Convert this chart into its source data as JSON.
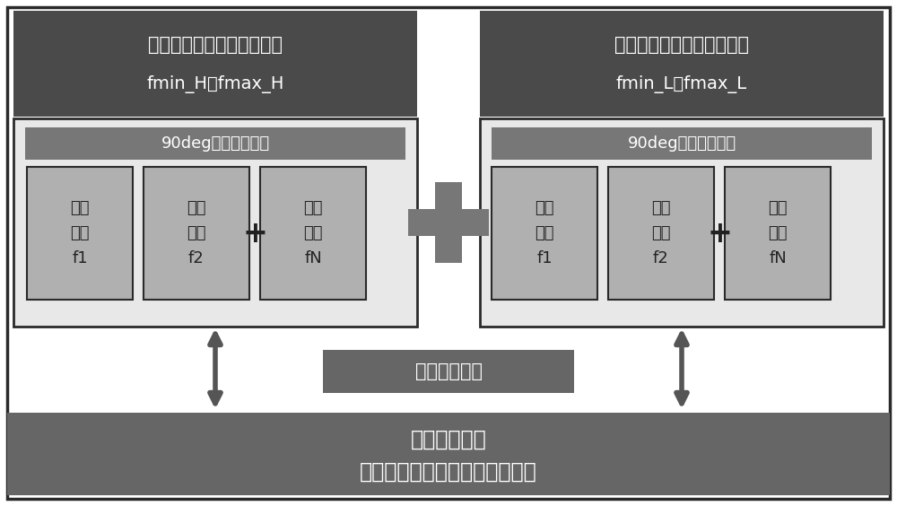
{
  "bg_color": "#ffffff",
  "outer_border_color": "#2a2a2a",
  "dark_header_color": "#4a4a4a",
  "medium_box_color": "#777777",
  "light_inner_bg": "#e8e8e8",
  "resonator_color": "#b0b0b0",
  "bottom_bar_color": "#666666",
  "serial_box_color": "#666666",
  "text_white": "#ffffff",
  "text_dark": "#222222",
  "arrow_color": "#555555",
  "left_header_line1": "基于高通相位相消级联电路",
  "left_header_line2": "fmin_H～fmax_H",
  "right_header_line1": "基于低通相位相消级联电路",
  "right_header_line2": "fmin_L～fmax_L",
  "left_network_label": "90deg高通相移网络",
  "right_network_label": "90deg低通相移网络",
  "res_line1": "谐振",
  "res_line2": "回路",
  "res_labels": [
    "f1",
    "f2",
    "fN"
  ],
  "serial_label": "高通低通串联",
  "bottom_line1": "带通相位相消",
  "bottom_line2": "新型级联多陷波超宽带滤波电路",
  "figsize": [
    10.0,
    5.64
  ],
  "dpi": 100
}
